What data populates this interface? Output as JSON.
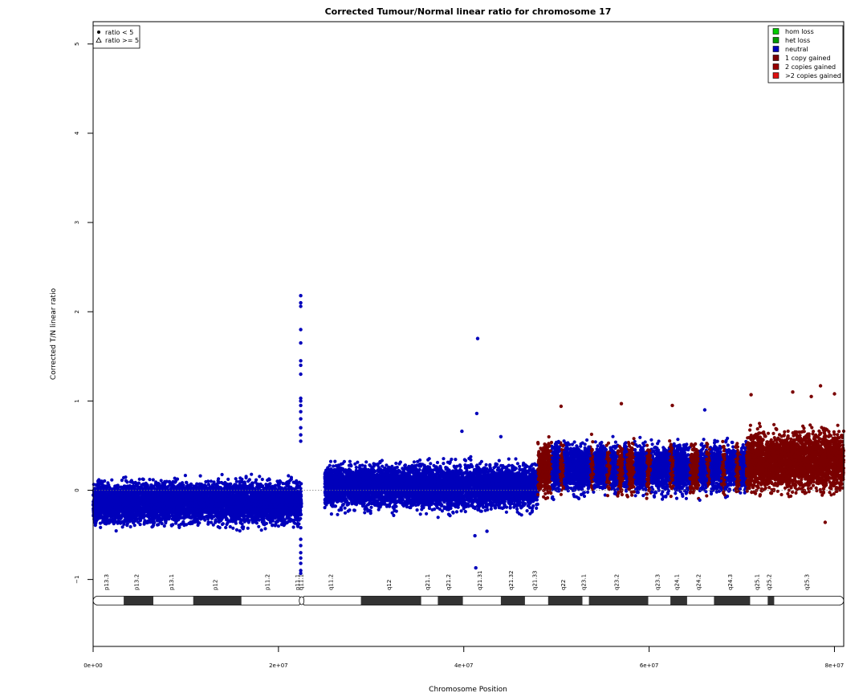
{
  "chart_data": {
    "type": "scatter",
    "title": "Corrected Tumour/Normal linear ratio for chromosome  17",
    "xlabel": "Chromosome Position",
    "ylabel": "Corrected T/N linear ratio",
    "xlim": [
      0,
      81000000
    ],
    "ylim": [
      -1.75,
      5.25
    ],
    "x_ticks": [
      0,
      20000000,
      40000000,
      60000000,
      80000000
    ],
    "x_tick_labels": [
      "0e+00",
      "2e+07",
      "4e+07",
      "6e+07",
      "8e+07"
    ],
    "y_ticks": [
      -1,
      0,
      1,
      2,
      3,
      4,
      5
    ],
    "y_tick_labels": [
      "−1",
      "0",
      "1",
      "2",
      "3",
      "4",
      "5"
    ],
    "reference_line": 0,
    "colors": {
      "hom_loss": "#00cc00",
      "het_loss": "#009900",
      "neutral": "#0000bb",
      "gain1": "#7a0000",
      "gain2": "#990000",
      "gain3": "#dd1111"
    },
    "legend_shape": {
      "placement": "top-left",
      "entries": [
        {
          "symbol": "dot",
          "label": "ratio < 5"
        },
        {
          "symbol": "triangle",
          "label": "ratio >= 5"
        }
      ]
    },
    "legend_status": {
      "placement": "top-right",
      "entries": [
        {
          "key": "hom_loss",
          "label": "hom loss"
        },
        {
          "key": "het_loss",
          "label": "het loss"
        },
        {
          "key": "neutral",
          "label": "neutral"
        },
        {
          "key": "gain1",
          "label": "1 copy gained"
        },
        {
          "key": "gain2",
          "label": "2 copies gained"
        },
        {
          "key": "gain3",
          "label": ">2 copies gained"
        }
      ]
    },
    "segments": [
      {
        "status": "neutral",
        "x_start": 0,
        "x_end": 22500000,
        "median": -0.14,
        "spread": 0.36
      },
      {
        "status": "neutral",
        "x_start": 25000000,
        "x_end": 48000000,
        "median": 0.04,
        "spread": 0.38
      },
      {
        "status": "neutral",
        "x_start": 48000000,
        "x_end": 70500000,
        "median": 0.24,
        "spread": 0.42
      },
      {
        "status": "gain1",
        "x_start": 70500000,
        "x_end": 81000000,
        "median": 0.33,
        "spread": 0.5
      }
    ],
    "gain_stripes": [
      {
        "x_start": 48000000,
        "x_end": 49500000
      },
      {
        "x_start": 50400000,
        "x_end": 50800000
      },
      {
        "x_start": 53600000,
        "x_end": 54000000
      },
      {
        "x_start": 55400000,
        "x_end": 55800000
      },
      {
        "x_start": 56600000,
        "x_end": 57200000
      },
      {
        "x_start": 57600000,
        "x_end": 58400000
      },
      {
        "x_start": 59700000,
        "x_end": 60200000
      },
      {
        "x_start": 62200000,
        "x_end": 62600000
      },
      {
        "x_start": 64400000,
        "x_end": 65400000
      },
      {
        "x_start": 66200000,
        "x_end": 66600000
      },
      {
        "x_start": 67800000,
        "x_end": 68200000
      },
      {
        "x_start": 69300000,
        "x_end": 69800000
      }
    ],
    "outliers": [
      {
        "x": 22400000,
        "y": 2.18
      },
      {
        "x": 22400000,
        "y": 2.1
      },
      {
        "x": 22400000,
        "y": 2.06
      },
      {
        "x": 22400000,
        "y": 1.8
      },
      {
        "x": 22400000,
        "y": 1.65
      },
      {
        "x": 22400000,
        "y": 1.45
      },
      {
        "x": 22400000,
        "y": 1.4
      },
      {
        "x": 22400000,
        "y": 1.3
      },
      {
        "x": 22400000,
        "y": 1.03
      },
      {
        "x": 22400000,
        "y": 1.0
      },
      {
        "x": 22400000,
        "y": 0.95
      },
      {
        "x": 22400000,
        "y": 0.88
      },
      {
        "x": 22400000,
        "y": 0.8
      },
      {
        "x": 22400000,
        "y": 0.7
      },
      {
        "x": 22400000,
        "y": 0.62
      },
      {
        "x": 22400000,
        "y": 0.55
      },
      {
        "x": 22400000,
        "y": -0.42
      },
      {
        "x": 22400000,
        "y": -0.55
      },
      {
        "x": 22400000,
        "y": -0.62
      },
      {
        "x": 22400000,
        "y": -0.7
      },
      {
        "x": 22400000,
        "y": -0.76
      },
      {
        "x": 22400000,
        "y": -0.82
      },
      {
        "x": 22400000,
        "y": -0.9
      },
      {
        "x": 22400000,
        "y": -0.93
      },
      {
        "x": 41500000,
        "y": 1.7
      },
      {
        "x": 41400000,
        "y": 0.86
      },
      {
        "x": 41300000,
        "y": -0.87
      },
      {
        "x": 42500000,
        "y": -0.46
      },
      {
        "x": 41200000,
        "y": -0.51
      },
      {
        "x": 39800000,
        "y": 0.66
      },
      {
        "x": 44000000,
        "y": 0.6
      },
      {
        "x": 50500000,
        "y": 0.94
      },
      {
        "x": 57000000,
        "y": 0.97
      },
      {
        "x": 62500000,
        "y": 0.95
      },
      {
        "x": 66000000,
        "y": 0.9
      },
      {
        "x": 71000000,
        "y": 1.07
      },
      {
        "x": 78500000,
        "y": 1.17
      },
      {
        "x": 80000000,
        "y": 1.08
      },
      {
        "x": 79000000,
        "y": -0.36
      },
      {
        "x": 75500000,
        "y": 1.1
      },
      {
        "x": 77500000,
        "y": 1.05
      }
    ],
    "ideogram": {
      "centromere_x": 22500000,
      "bands": [
        {
          "name": "p13.3",
          "start": 0,
          "end": 3300000,
          "stain": "white"
        },
        {
          "name": "p13.2",
          "start": 3300000,
          "end": 6500000,
          "stain": "dark"
        },
        {
          "name": "p13.1",
          "start": 6500000,
          "end": 10800000,
          "stain": "white"
        },
        {
          "name": "p12",
          "start": 10800000,
          "end": 16000000,
          "stain": "dark"
        },
        {
          "name": "p11.2",
          "start": 16000000,
          "end": 22000000,
          "stain": "white"
        },
        {
          "name": "p11.1",
          "start": 22000000,
          "end": 22500000,
          "stain": "white"
        },
        {
          "name": "q11.1",
          "start": 22500000,
          "end": 22800000,
          "stain": "white"
        },
        {
          "name": "q11.2",
          "start": 22800000,
          "end": 28900000,
          "stain": "white"
        },
        {
          "name": "q12",
          "start": 28900000,
          "end": 35400000,
          "stain": "dark"
        },
        {
          "name": "q21.1",
          "start": 35400000,
          "end": 37200000,
          "stain": "white"
        },
        {
          "name": "q21.2",
          "start": 37200000,
          "end": 39900000,
          "stain": "dark"
        },
        {
          "name": "q21.31",
          "start": 39900000,
          "end": 44000000,
          "stain": "white"
        },
        {
          "name": "q21.32",
          "start": 44000000,
          "end": 46600000,
          "stain": "dark"
        },
        {
          "name": "q21.33",
          "start": 46600000,
          "end": 49100000,
          "stain": "white"
        },
        {
          "name": "q22",
          "start": 49100000,
          "end": 52800000,
          "stain": "dark"
        },
        {
          "name": "q23.1",
          "start": 52800000,
          "end": 53500000,
          "stain": "white"
        },
        {
          "name": "q23.2",
          "start": 53500000,
          "end": 59900000,
          "stain": "dark"
        },
        {
          "name": "q23.3",
          "start": 59900000,
          "end": 62300000,
          "stain": "white"
        },
        {
          "name": "q24.1",
          "start": 62300000,
          "end": 64100000,
          "stain": "dark"
        },
        {
          "name": "q24.2",
          "start": 64100000,
          "end": 67000000,
          "stain": "white"
        },
        {
          "name": "q24.3",
          "start": 67000000,
          "end": 70900000,
          "stain": "dark"
        },
        {
          "name": "q25.1",
          "start": 70900000,
          "end": 72800000,
          "stain": "white"
        },
        {
          "name": "q25.2",
          "start": 72800000,
          "end": 73500000,
          "stain": "dark"
        },
        {
          "name": "q25.3",
          "start": 73500000,
          "end": 81000000,
          "stain": "white"
        }
      ]
    }
  }
}
